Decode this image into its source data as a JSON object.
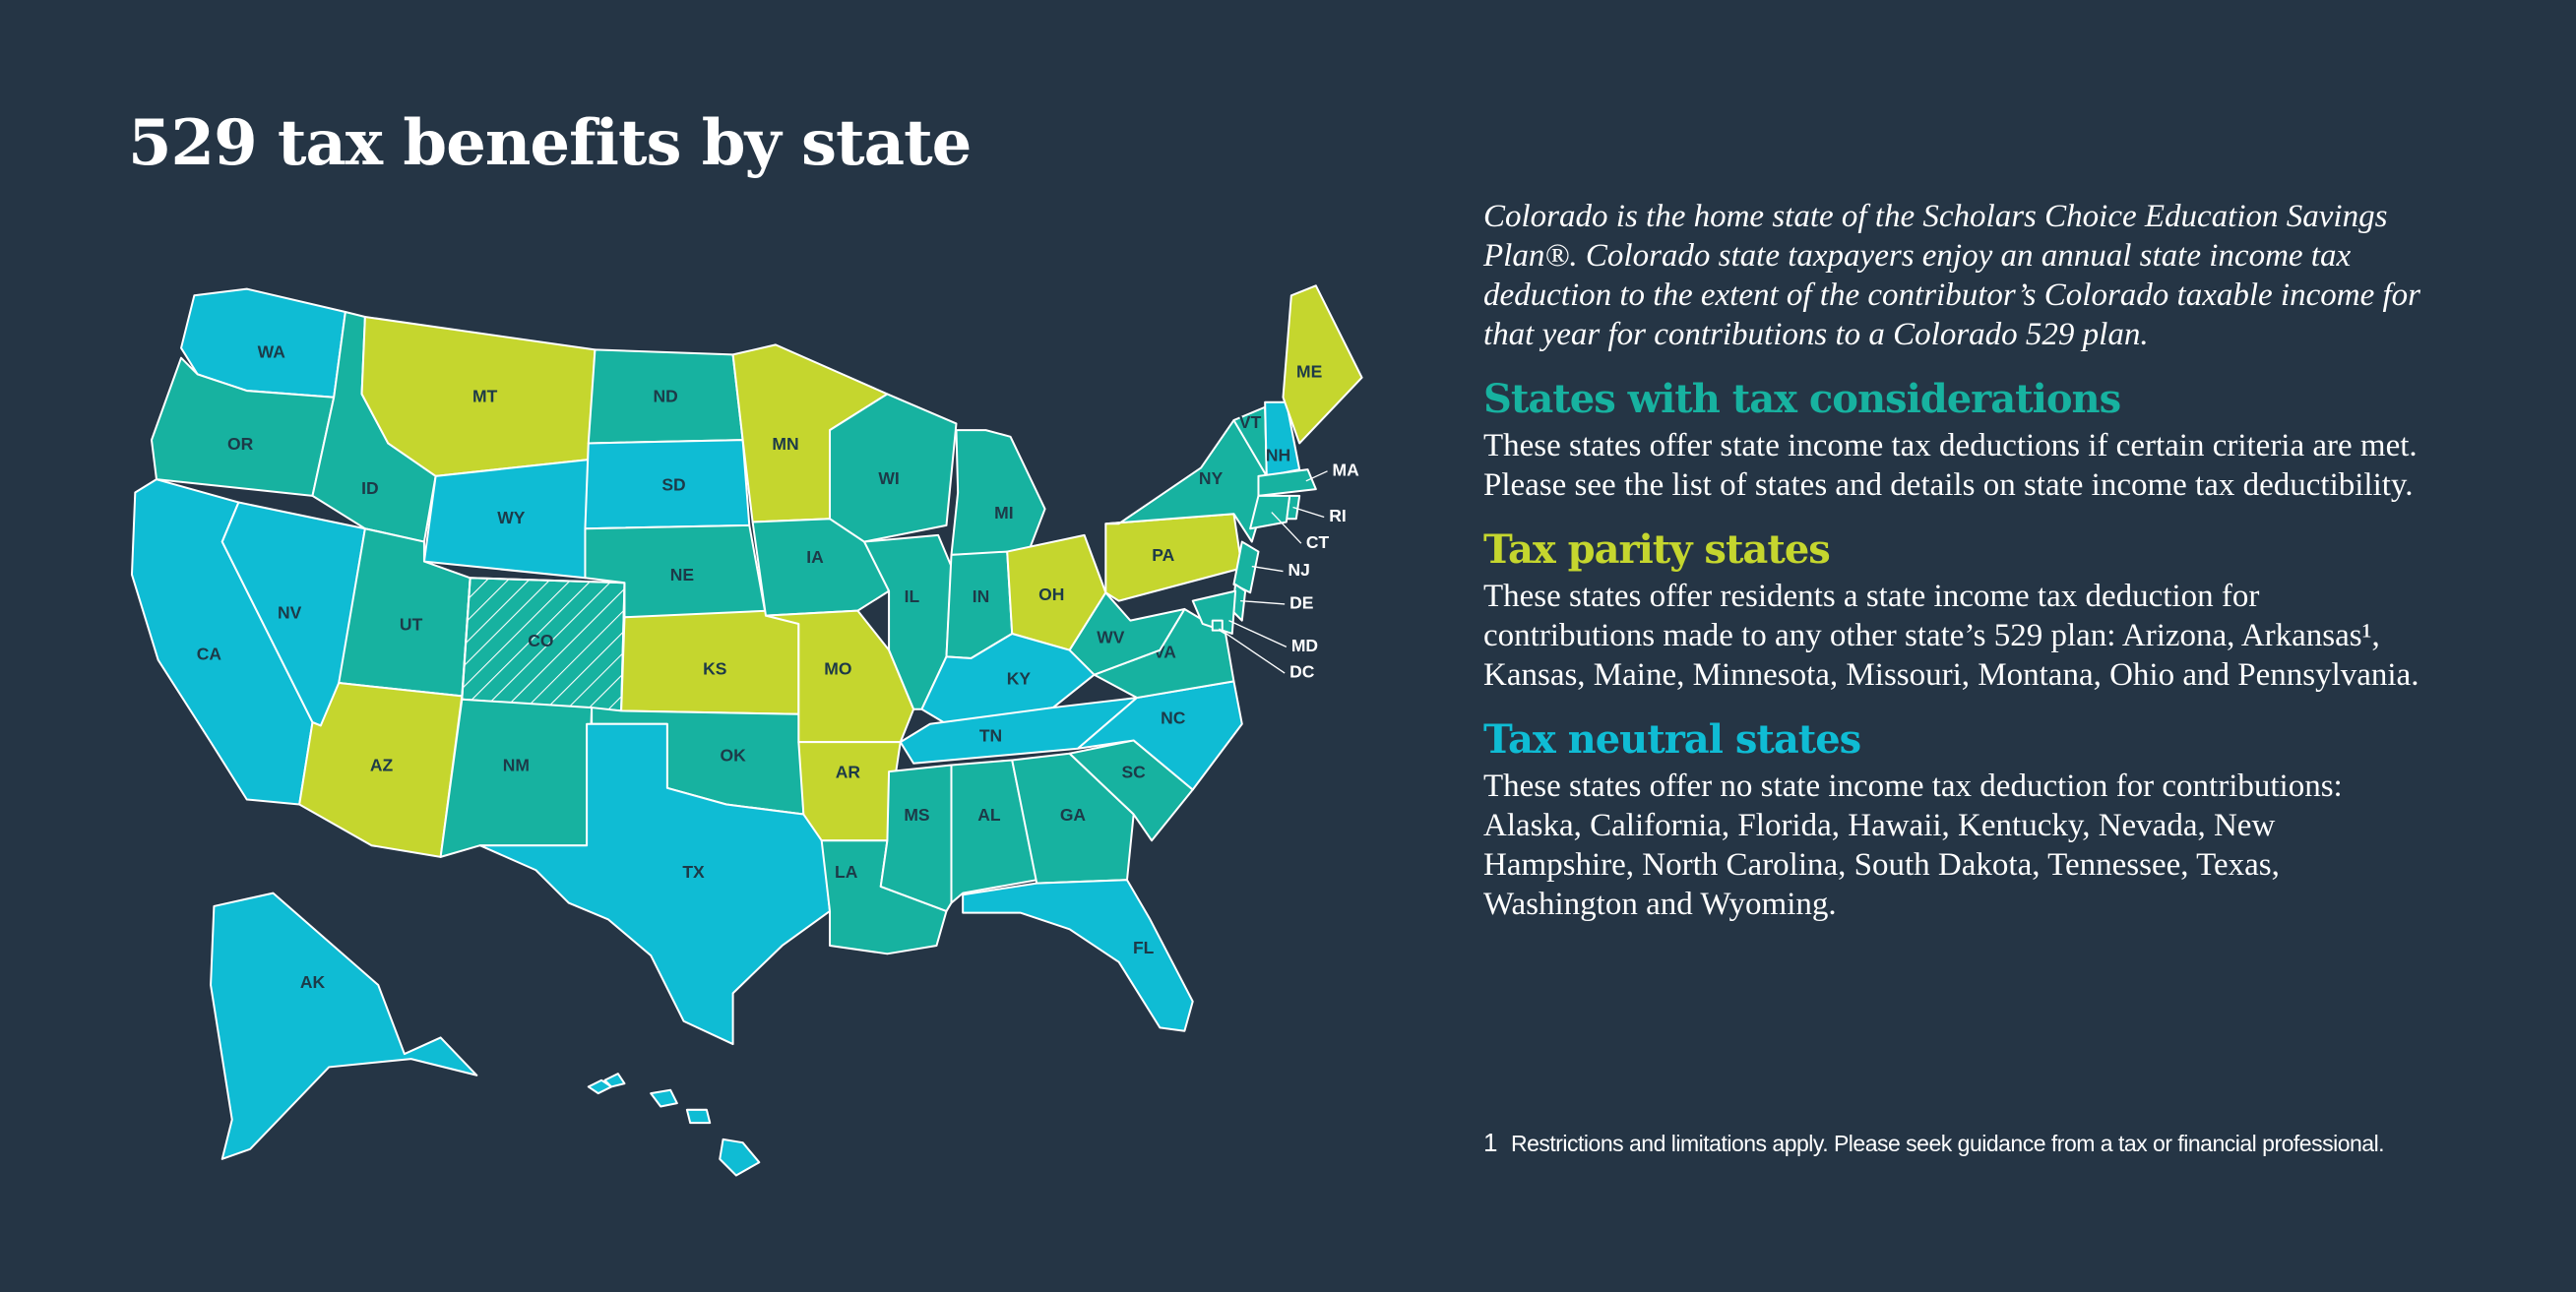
{
  "title": "529 tax benefits by state",
  "intro": "Colorado is the home state of the Scholars Choice Education Savings Plan®. Colorado state taxpayers enjoy an annual state income tax deduction to the extent of the contributor’s Colorado taxable income for that year for contributions to a Colorado 529 plan.",
  "sections": [
    {
      "heading": "States with tax considerations",
      "color": "#17b2a0",
      "body": "These states offer state income tax deductions if certain criteria are met. Please see the list of states and details on state income tax deductibility."
    },
    {
      "heading": "Tax parity states",
      "color": "#c5d62e",
      "body": "These states offer residents a state income tax deduction for contributions made to any other state’s 529 plan: Arizona, Arkansas¹, Kansas, Maine, Minnesota, Missouri, Montana, Ohio and Pennsylvania."
    },
    {
      "heading": "Tax neutral states",
      "color": "#0fbcd4",
      "body": "These states offer no state income tax deduction for contributions: Alaska, California, Florida, Hawaii, Kentucky, Nevada, New Hampshire, North Carolina, South Dakota, Tennessee, Texas, Washington and Wyoming."
    }
  ],
  "footnote": {
    "marker": "1",
    "text": "Restrictions and limitations apply. Please seek guidance from a tax or financial professional."
  },
  "map": {
    "states": [
      {
        "label": "WA",
        "section": 2
      },
      {
        "label": "OR",
        "section": 0
      },
      {
        "label": "CA",
        "section": 2
      },
      {
        "label": "NV",
        "section": 2
      },
      {
        "label": "ID",
        "section": 0
      },
      {
        "label": "MT",
        "section": 1
      },
      {
        "label": "WY",
        "section": 2
      },
      {
        "label": "UT",
        "section": 0
      },
      {
        "label": "CO",
        "section": 0,
        "hatched": true
      },
      {
        "label": "AZ",
        "section": 1
      },
      {
        "label": "NM",
        "section": 0
      },
      {
        "label": "ND",
        "section": 0
      },
      {
        "label": "SD",
        "section": 2
      },
      {
        "label": "NE",
        "section": 0
      },
      {
        "label": "KS",
        "section": 1
      },
      {
        "label": "OK",
        "section": 0
      },
      {
        "label": "TX",
        "section": 2
      },
      {
        "label": "MN",
        "section": 1
      },
      {
        "label": "IA",
        "section": 0
      },
      {
        "label": "MO",
        "section": 1
      },
      {
        "label": "AR",
        "section": 1
      },
      {
        "label": "LA",
        "section": 0
      },
      {
        "label": "WI",
        "section": 0
      },
      {
        "label": "IL",
        "section": 0
      },
      {
        "label": "MI",
        "section": 0
      },
      {
        "label": "IN",
        "section": 0
      },
      {
        "label": "OH",
        "section": 1
      },
      {
        "label": "KY",
        "section": 2
      },
      {
        "label": "TN",
        "section": 2
      },
      {
        "label": "MS",
        "section": 0
      },
      {
        "label": "AL",
        "section": 0
      },
      {
        "label": "GA",
        "section": 0
      },
      {
        "label": "FL",
        "section": 2
      },
      {
        "label": "SC",
        "section": 0
      },
      {
        "label": "NC",
        "section": 2
      },
      {
        "label": "VA",
        "section": 0
      },
      {
        "label": "WV",
        "section": 0
      },
      {
        "label": "PA",
        "section": 1
      },
      {
        "label": "NY",
        "section": 0
      },
      {
        "label": "VT",
        "section": 0
      },
      {
        "label": "NH",
        "section": 2
      },
      {
        "label": "ME",
        "section": 1
      },
      {
        "label": "MA",
        "section": 0
      },
      {
        "label": "RI",
        "section": 0
      },
      {
        "label": "CT",
        "section": 0
      },
      {
        "label": "NJ",
        "section": 0
      },
      {
        "label": "DE",
        "section": 0
      },
      {
        "label": "MD",
        "section": 0
      },
      {
        "label": "DC",
        "section": 0
      },
      {
        "label": "AK",
        "section": 2
      },
      {
        "label": null,
        "section": 2
      }
    ]
  }
}
